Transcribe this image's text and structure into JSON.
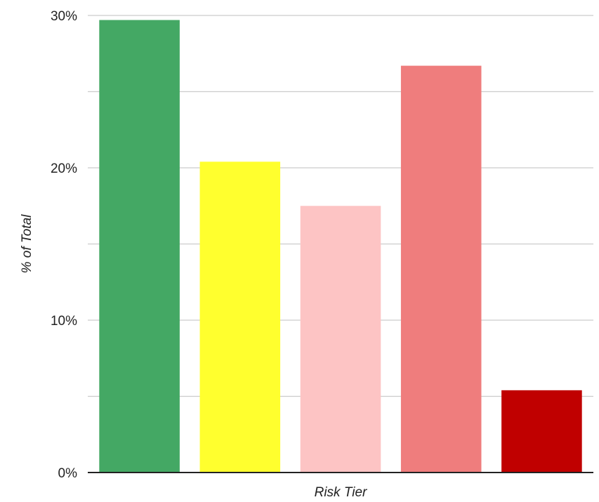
{
  "chart_data": {
    "type": "bar",
    "categories": [
      "",
      "",
      "",
      "",
      ""
    ],
    "series": [
      {
        "values": [
          29.7,
          20.4,
          17.5,
          26.7,
          5.4
        ],
        "colors": [
          "#44a864",
          "#ffff2e",
          "#fdc4c4",
          "#ef7d7d",
          "#c00000"
        ]
      }
    ],
    "title": "",
    "xlabel": "Risk Tier",
    "ylabel": "% of Total",
    "ylim": [
      0,
      30
    ],
    "yticks": [
      {
        "value": 0,
        "label": "0%"
      },
      {
        "value": 5,
        "label": ""
      },
      {
        "value": 10,
        "label": "10%"
      },
      {
        "value": 15,
        "label": ""
      },
      {
        "value": 20,
        "label": "20%"
      },
      {
        "value": 25,
        "label": ""
      },
      {
        "value": 30,
        "label": "30%"
      }
    ],
    "grid": true,
    "legend": "none"
  }
}
